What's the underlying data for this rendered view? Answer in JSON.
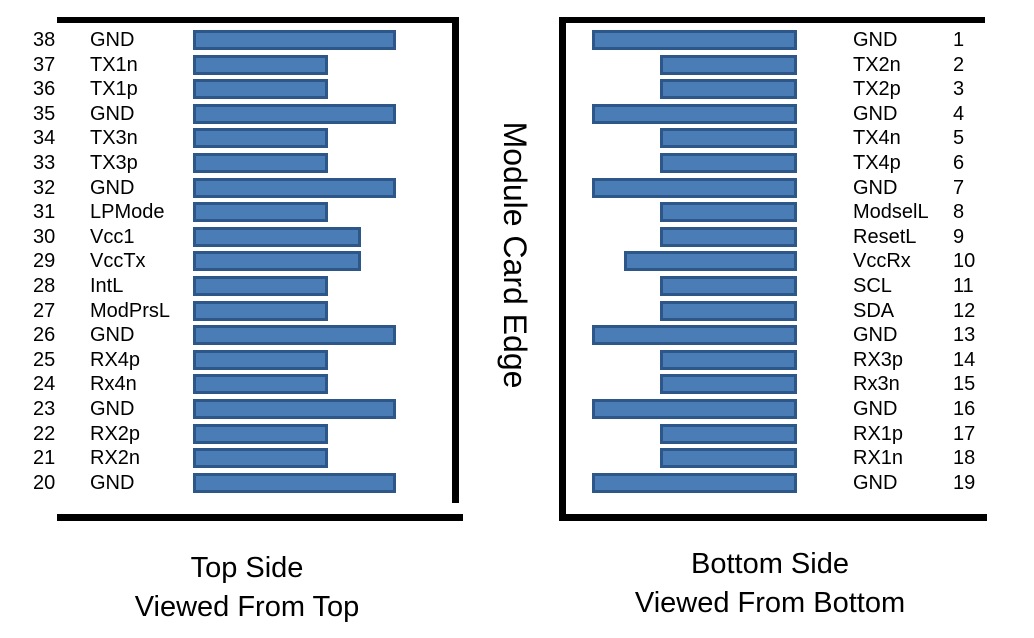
{
  "module_card_edge_label": "Module Card Edge",
  "colors": {
    "bar_fill": "#4a7db6",
    "bar_border": "#2d5689",
    "panel_border": "#000000"
  },
  "top_side": {
    "caption_line1": "Top Side",
    "caption_line2": "Viewed From Top",
    "pins": [
      {
        "number": "38",
        "name": "GND",
        "pad": "long"
      },
      {
        "number": "37",
        "name": "TX1n",
        "pad": "short"
      },
      {
        "number": "36",
        "name": "TX1p",
        "pad": "short"
      },
      {
        "number": "35",
        "name": "GND",
        "pad": "long"
      },
      {
        "number": "34",
        "name": "TX3n",
        "pad": "short"
      },
      {
        "number": "33",
        "name": "TX3p",
        "pad": "short"
      },
      {
        "number": "32",
        "name": "GND",
        "pad": "long"
      },
      {
        "number": "31",
        "name": "LPMode",
        "pad": "short"
      },
      {
        "number": "30",
        "name": "Vcc1",
        "pad": "medium"
      },
      {
        "number": "29",
        "name": "VccTx",
        "pad": "medium"
      },
      {
        "number": "28",
        "name": "IntL",
        "pad": "short"
      },
      {
        "number": "27",
        "name": "ModPrsL",
        "pad": "short"
      },
      {
        "number": "26",
        "name": "GND",
        "pad": "long"
      },
      {
        "number": "25",
        "name": "RX4p",
        "pad": "short"
      },
      {
        "number": "24",
        "name": "Rx4n",
        "pad": "short"
      },
      {
        "number": "23",
        "name": "GND",
        "pad": "long"
      },
      {
        "number": "22",
        "name": "RX2p",
        "pad": "short"
      },
      {
        "number": "21",
        "name": "RX2n",
        "pad": "short"
      },
      {
        "number": "20",
        "name": "GND",
        "pad": "long"
      }
    ]
  },
  "bottom_side": {
    "caption_line1": "Bottom Side",
    "caption_line2": "Viewed From Bottom",
    "pins": [
      {
        "number": "1",
        "name": "GND",
        "pad": "long"
      },
      {
        "number": "2",
        "name": "TX2n",
        "pad": "short"
      },
      {
        "number": "3",
        "name": "TX2p",
        "pad": "short"
      },
      {
        "number": "4",
        "name": "GND",
        "pad": "long"
      },
      {
        "number": "5",
        "name": "TX4n",
        "pad": "short"
      },
      {
        "number": "6",
        "name": "TX4p",
        "pad": "short"
      },
      {
        "number": "7",
        "name": "GND",
        "pad": "long"
      },
      {
        "number": "8",
        "name": "ModselL",
        "pad": "short"
      },
      {
        "number": "9",
        "name": "ResetL",
        "pad": "short"
      },
      {
        "number": "10",
        "name": "VccRx",
        "pad": "medium"
      },
      {
        "number": "11",
        "name": "SCL",
        "pad": "short"
      },
      {
        "number": "12",
        "name": "SDA",
        "pad": "short"
      },
      {
        "number": "13",
        "name": "GND",
        "pad": "long"
      },
      {
        "number": "14",
        "name": "RX3p",
        "pad": "short"
      },
      {
        "number": "15",
        "name": "Rx3n",
        "pad": "short"
      },
      {
        "number": "16",
        "name": "GND",
        "pad": "long"
      },
      {
        "number": "17",
        "name": "RX1p",
        "pad": "short"
      },
      {
        "number": "18",
        "name": "RX1n",
        "pad": "short"
      },
      {
        "number": "19",
        "name": "GND",
        "pad": "long"
      }
    ]
  }
}
